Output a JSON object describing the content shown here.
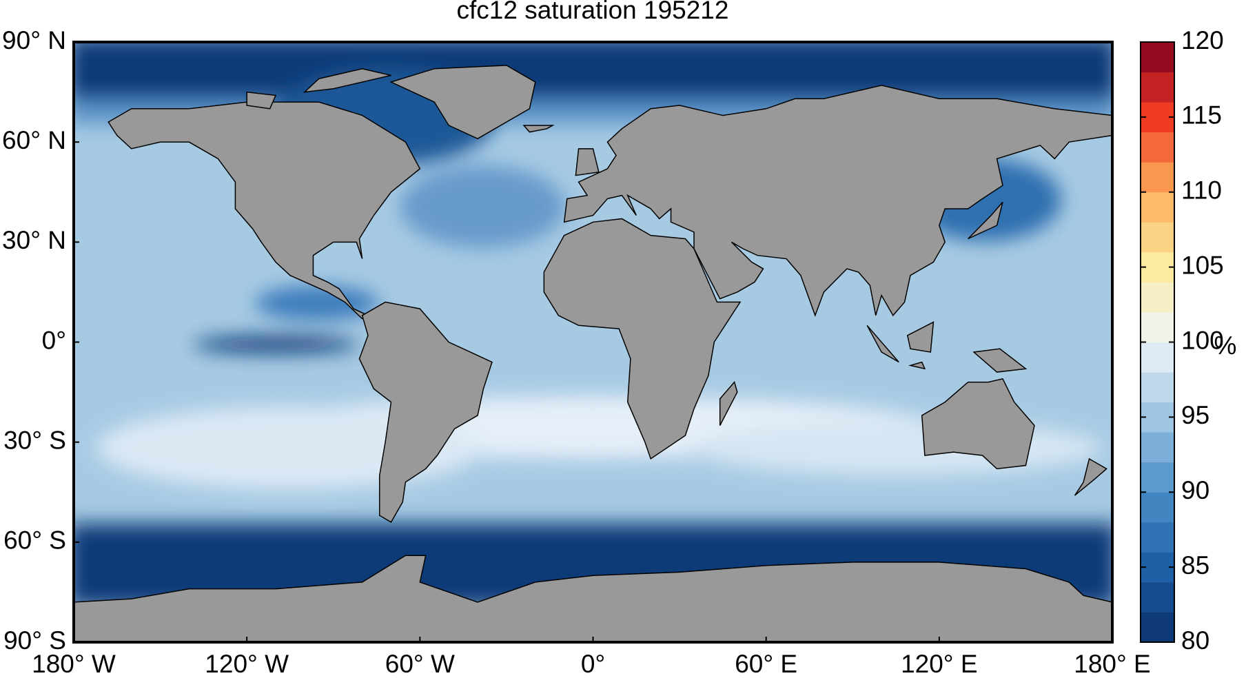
{
  "chart_data": {
    "type": "map",
    "title": "cfc12 saturation 195212",
    "xlim": [
      -180,
      180
    ],
    "ylim": [
      -90,
      90
    ],
    "xticks": [
      {
        "value": -180,
        "label": "180° W"
      },
      {
        "value": -120,
        "label": "120° W"
      },
      {
        "value": -60,
        "label": "60° W"
      },
      {
        "value": 0,
        "label": "0°"
      },
      {
        "value": 60,
        "label": "60° E"
      },
      {
        "value": 120,
        "label": "120° E"
      },
      {
        "value": 180,
        "label": "180° E"
      }
    ],
    "yticks": [
      {
        "value": 90,
        "label": "90° N"
      },
      {
        "value": 60,
        "label": "60° N"
      },
      {
        "value": 30,
        "label": "30° N"
      },
      {
        "value": 0,
        "label": "0°"
      },
      {
        "value": -30,
        "label": "30° S"
      },
      {
        "value": -60,
        "label": "60° S"
      },
      {
        "value": -90,
        "label": "90° S"
      }
    ],
    "colorbar": {
      "label": "%",
      "clim": [
        80,
        120
      ],
      "ticks": [
        80,
        85,
        90,
        95,
        100,
        105,
        110,
        115,
        120
      ],
      "colors": [
        "#08306b",
        "#1f5fa6",
        "#4a8fc8",
        "#9ec6e2",
        "#eef4fa",
        "#fbeaa0",
        "#fdae5a",
        "#ef3b24",
        "#7f0020"
      ]
    }
  }
}
